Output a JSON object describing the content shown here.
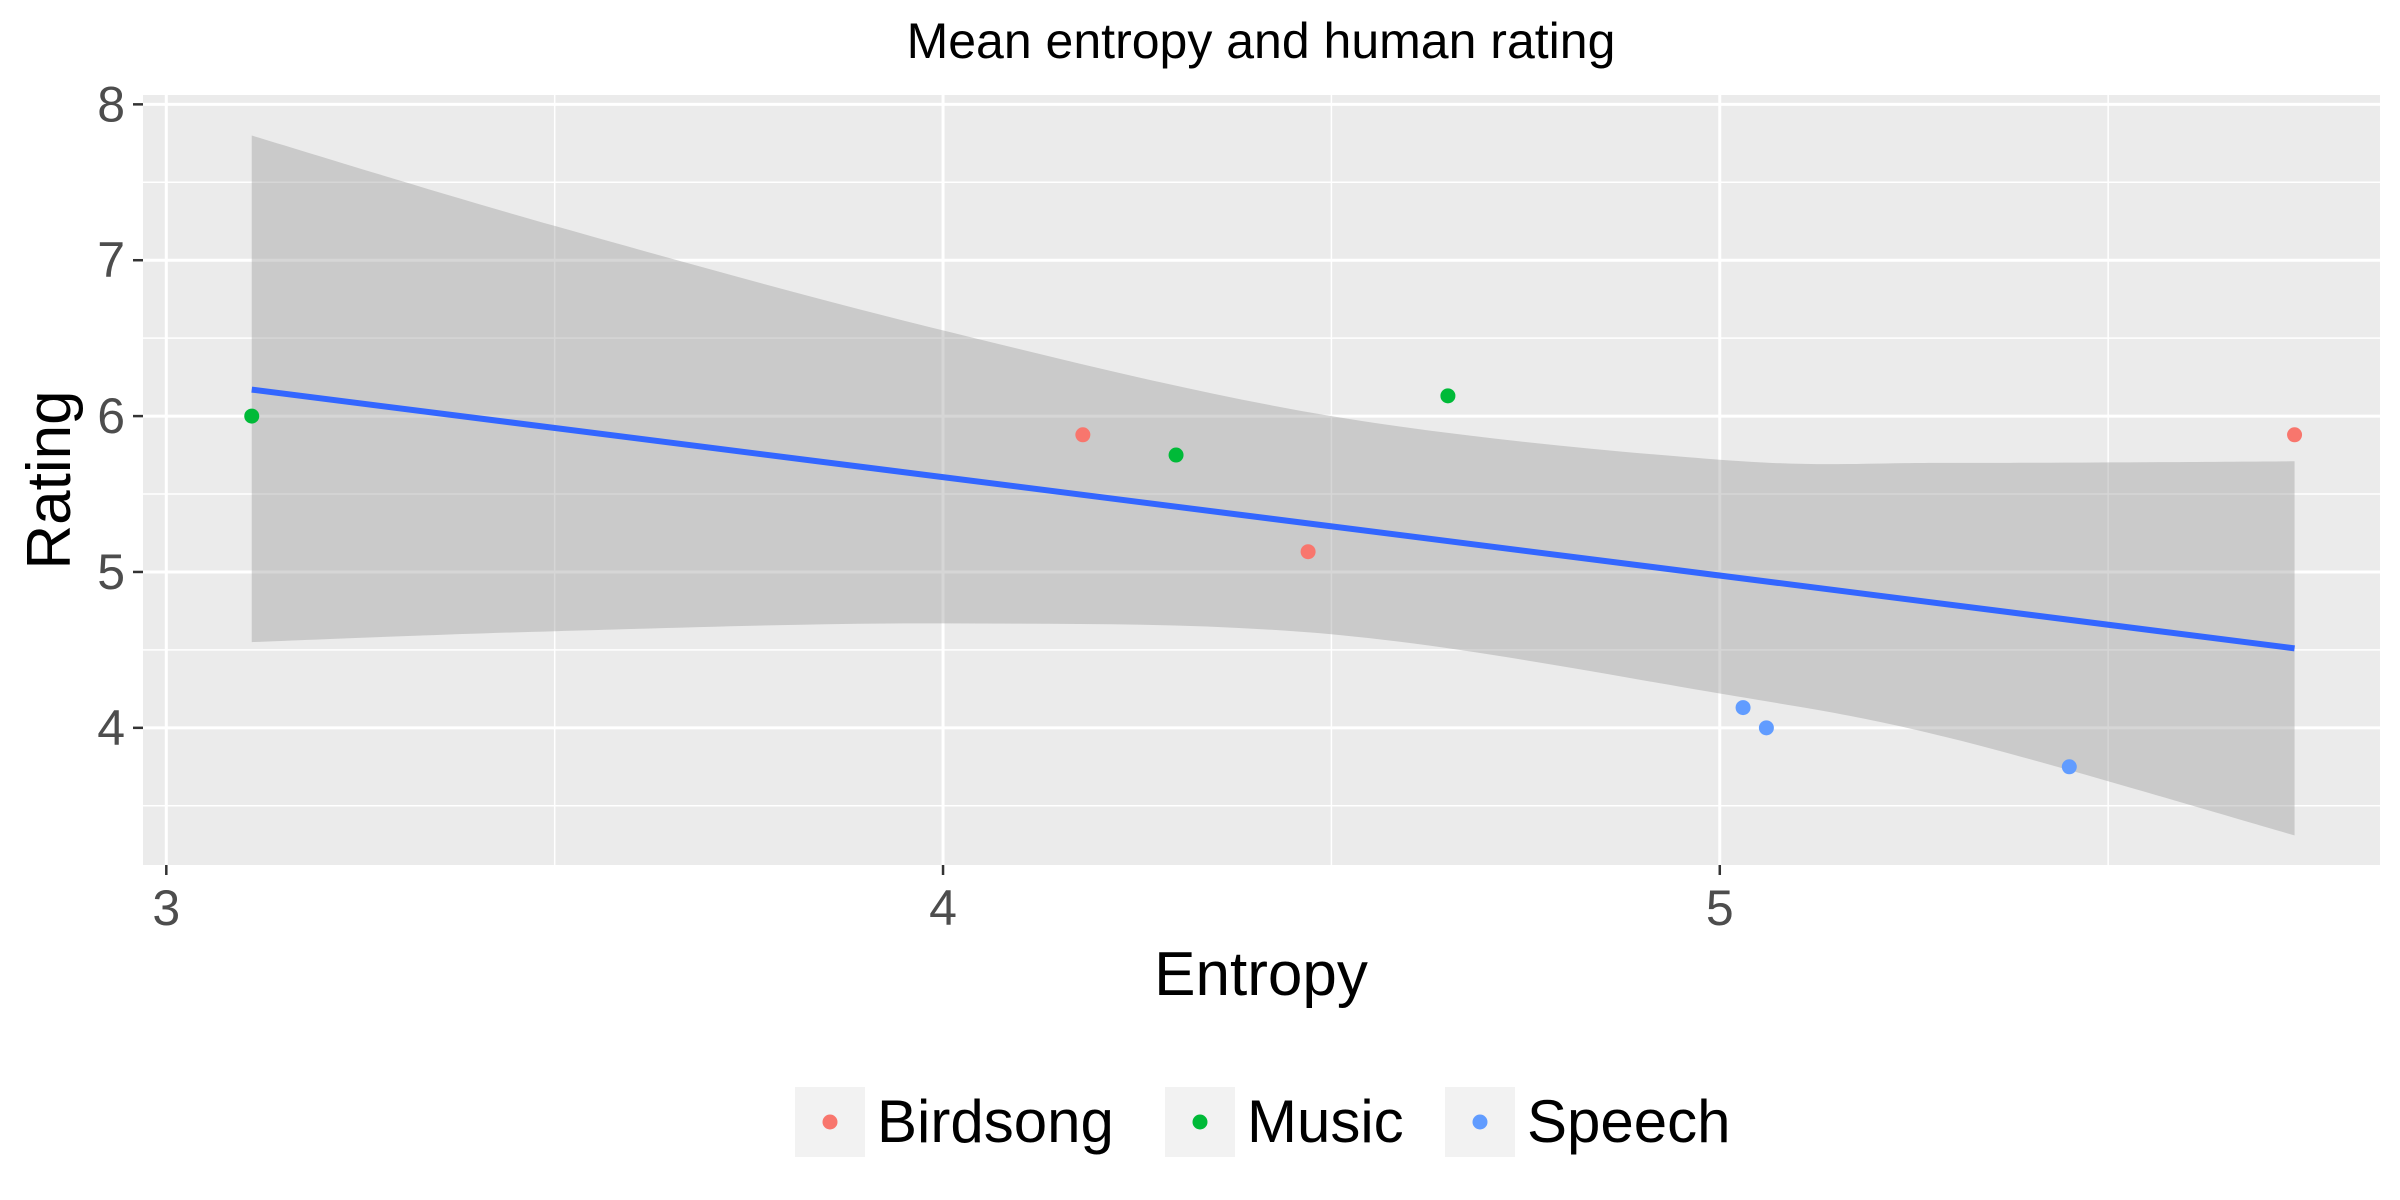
{
  "chart_data": {
    "type": "scatter",
    "title": "Mean entropy and human rating",
    "xlabel": "Entropy",
    "ylabel": "Rating",
    "xlim": [
      2.97,
      5.85
    ],
    "ylim": [
      3.12,
      8.06
    ],
    "x_ticks": [
      3,
      4,
      5
    ],
    "y_ticks": [
      4,
      5,
      6,
      7,
      8
    ],
    "grid": true,
    "legend_position": "bottom",
    "series": [
      {
        "name": "Birdsong",
        "color": "#F8766D",
        "points": [
          [
            4.18,
            5.88
          ],
          [
            4.47,
            5.13
          ],
          [
            5.74,
            5.88
          ]
        ]
      },
      {
        "name": "Music",
        "color": "#00BA38",
        "points": [
          [
            3.11,
            6.0
          ],
          [
            4.3,
            5.75
          ],
          [
            4.65,
            6.13
          ]
        ]
      },
      {
        "name": "Speech",
        "color": "#619CFF",
        "points": [
          [
            5.03,
            4.13
          ],
          [
            5.06,
            4.0
          ],
          [
            5.45,
            3.75
          ]
        ]
      }
    ],
    "trend_line": {
      "method": "linear",
      "color": "#3366FF",
      "x": [
        3.11,
        5.74
      ],
      "y": [
        6.17,
        4.51
      ]
    },
    "confidence_band": {
      "color": "#999999",
      "x": [
        3.11,
        3.5,
        4.0,
        4.5,
        5.0,
        5.3,
        5.74
      ],
      "upper": [
        7.8,
        7.22,
        6.55,
        6.0,
        5.72,
        5.7,
        5.71
      ],
      "lower": [
        4.55,
        4.62,
        4.67,
        4.6,
        4.22,
        3.93,
        3.31
      ]
    }
  }
}
